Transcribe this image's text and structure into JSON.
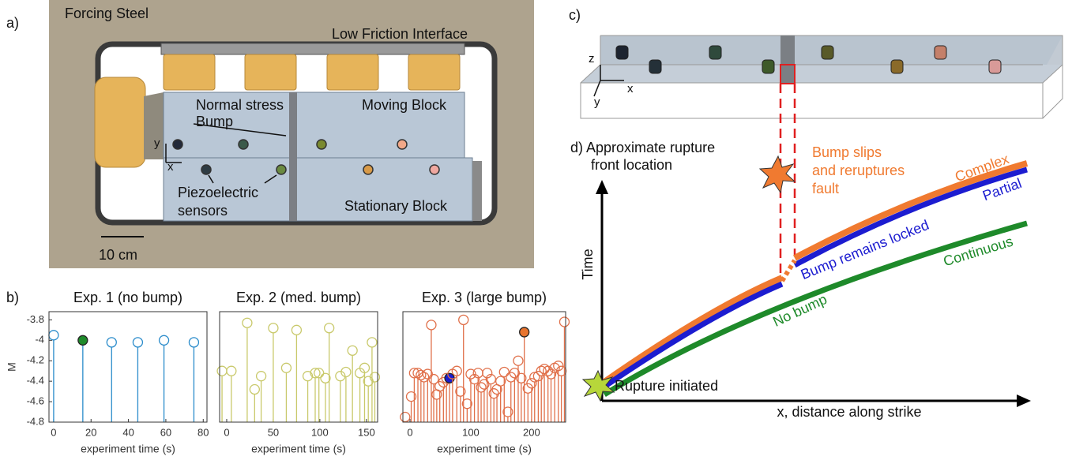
{
  "panel_a": {
    "label": "a)",
    "forcing_steel": "Forcing Steel",
    "low_friction": "Low Friction Interface",
    "bump": [
      "Normal stress",
      "Bump"
    ],
    "moving_block": "Moving Block",
    "stationary_block": "Stationary Block",
    "sensors": [
      "Piezoelectric",
      "sensors"
    ],
    "axis_x": "x",
    "axis_y": "y",
    "scale": "10 cm"
  },
  "panel_b": {
    "label": "b)"
  },
  "panel_c": {
    "label": "c)",
    "axis_z": "z",
    "axis_x": "x",
    "axis_y": "y"
  },
  "panel_d": {
    "title": [
      "d) Approximate rupture",
      "front location"
    ],
    "bump_slips": [
      "Bump slips",
      "and reruptures",
      "fault"
    ],
    "complex": "Complex",
    "partial": "Partial",
    "locked": "Bump remains locked",
    "continuous": "Continuous",
    "no_bump": "No bump",
    "y_label": "Time",
    "initiated": "Rupture initiated",
    "x_label": "x, distance along strike"
  },
  "chart_data": [
    {
      "type": "stem",
      "title": "Exp. 1 (no bump)",
      "x_label": "experiment time (s)",
      "y_label": "M",
      "color": "#2b8ccb",
      "x": [
        0,
        15.6,
        31,
        45,
        59,
        75
      ],
      "values": [
        -3.95,
        -4.0,
        -4.02,
        -4.02,
        -4.0,
        -4.02
      ],
      "highlights": [
        {
          "index": 1,
          "color": "#1e8a2a"
        }
      ],
      "xlim": [
        -2.5,
        82
      ],
      "ylim": [
        -4.8,
        -3.72
      ],
      "xticks": [
        0,
        20,
        40,
        60,
        80
      ],
      "yticks": [
        -4.8,
        -4.6,
        -4.4,
        -4.2,
        -4,
        -3.8
      ]
    },
    {
      "type": "stem",
      "title": "Exp. 2 (med. bump)",
      "x_label": "experiment time (s)",
      "color": "#c9c96b",
      "x": [
        -5,
        5,
        22,
        30,
        37,
        50,
        64,
        75,
        87,
        95,
        99,
        106,
        110,
        122,
        128,
        135,
        143,
        148,
        152,
        156,
        159
      ],
      "values": [
        -4.3,
        -4.3,
        -3.83,
        -4.48,
        -4.35,
        -3.88,
        -4.27,
        -3.9,
        -4.35,
        -4.32,
        -4.32,
        -4.37,
        -3.88,
        -4.35,
        -4.31,
        -4.1,
        -4.32,
        -4.27,
        -4.4,
        -4.02,
        -4.36
      ],
      "highlights": [],
      "xlim": [
        -7.6,
        162
      ],
      "ylim": [
        -4.8,
        -3.72
      ],
      "xticks": [
        0,
        50,
        100,
        150
      ]
    },
    {
      "type": "stem",
      "title": "Exp. 3 (large bump)",
      "x_label": "experiment time (s)",
      "color": "#e0704a",
      "x": [
        -8,
        2,
        7,
        13,
        18,
        23,
        29,
        35,
        39,
        44,
        49,
        55,
        60,
        65,
        70,
        77,
        83,
        88,
        94,
        100,
        106,
        112,
        117,
        122,
        127,
        133,
        138,
        143,
        149,
        155,
        161,
        166,
        172,
        178,
        183,
        188,
        194,
        200,
        205,
        211,
        216,
        221,
        227,
        232,
        238,
        244,
        249,
        254
      ],
      "values": [
        -4.75,
        -4.55,
        -4.32,
        -4.32,
        -4.34,
        -4.36,
        -4.33,
        -3.85,
        -4.38,
        -4.53,
        -4.45,
        -4.41,
        -4.37,
        -4.37,
        -4.33,
        -4.3,
        -4.5,
        -3.8,
        -4.62,
        -4.33,
        -4.38,
        -4.32,
        -4.46,
        -4.43,
        -4.32,
        -4.38,
        -4.52,
        -4.48,
        -4.4,
        -4.31,
        -4.7,
        -4.36,
        -4.32,
        -4.2,
        -4.37,
        -3.92,
        -4.47,
        -4.42,
        -4.36,
        -4.35,
        -4.3,
        -4.28,
        -4.3,
        -4.33,
        -4.27,
        -4.25,
        -4.3,
        -3.82
      ],
      "highlights": [
        {
          "index": 13,
          "color": "#1c1cd0"
        },
        {
          "index": 35,
          "color": "#e8742f"
        }
      ],
      "xlim": [
        -11.7,
        256
      ],
      "ylim": [
        -4.8,
        -3.72
      ],
      "xticks": [
        0,
        100,
        200
      ]
    }
  ]
}
